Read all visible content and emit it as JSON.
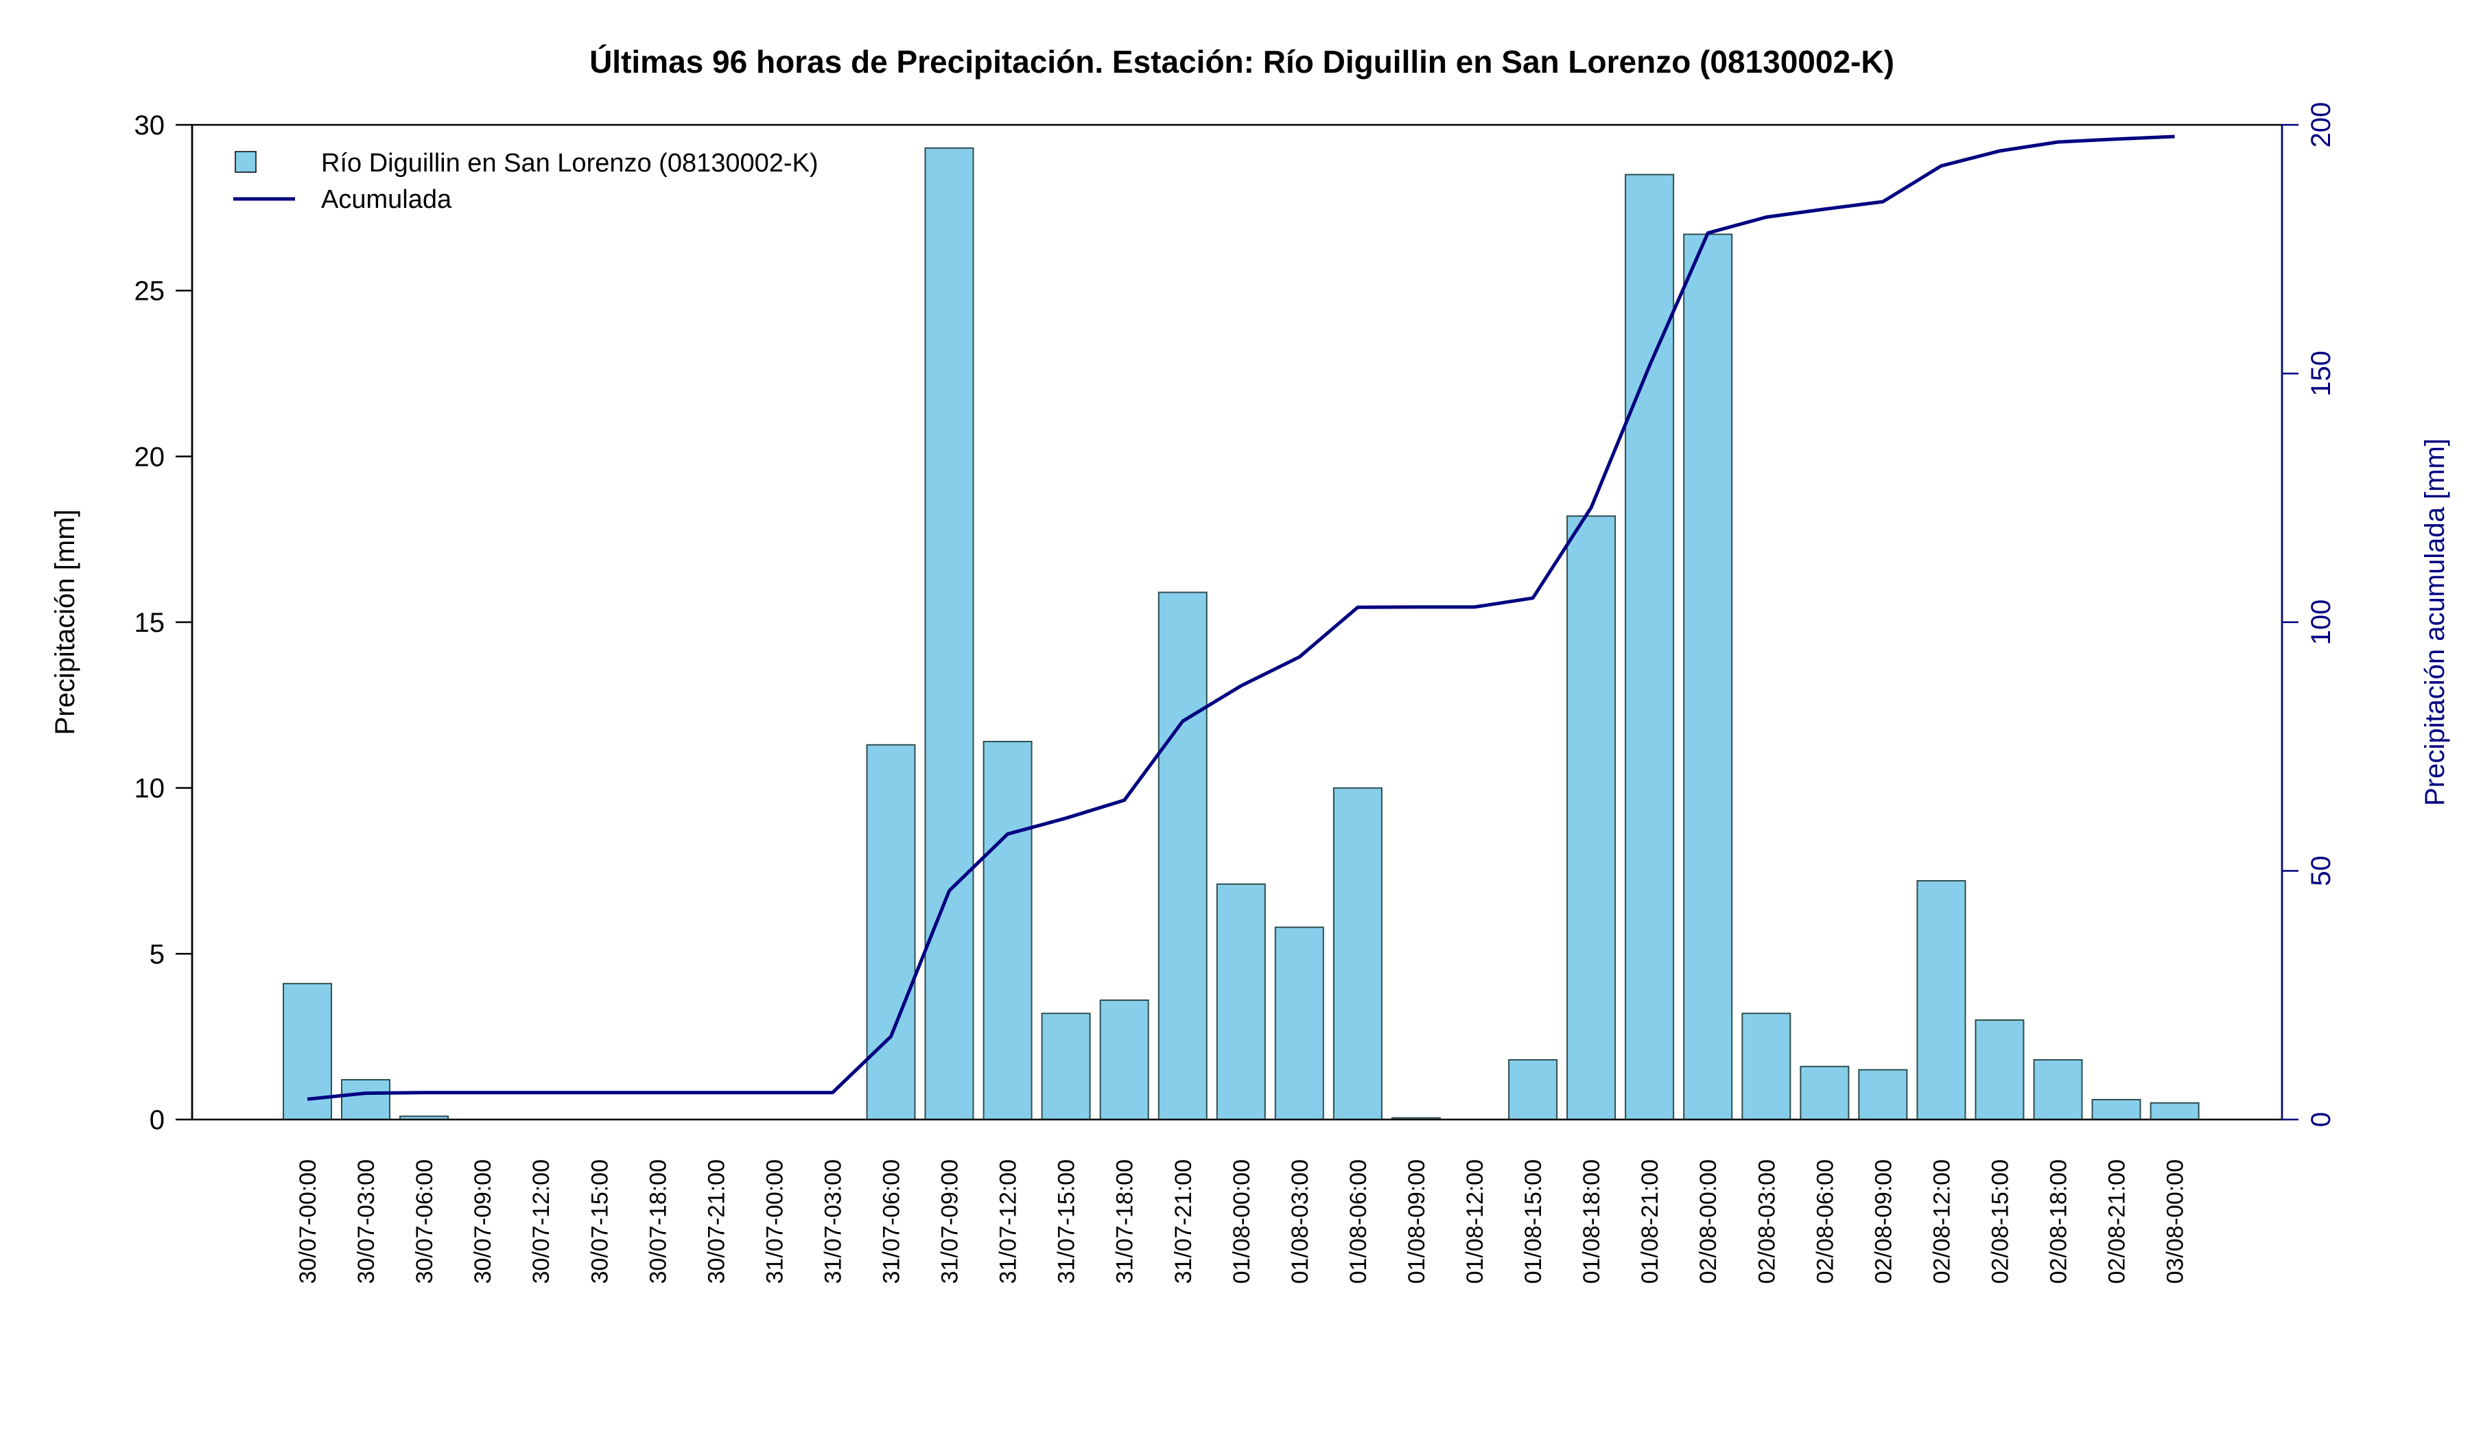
{
  "chart_data": {
    "type": "bar",
    "title": "Últimas 96 horas de Precipitación. Estación: Río Diguillin en San Lorenzo (08130002-K)",
    "ylabel": "Precipitación [mm]",
    "y2label": "Precipitación acumulada [mm]",
    "ylim": [
      0,
      30
    ],
    "y2lim": [
      0,
      200
    ],
    "yticks": [
      "0",
      "5",
      "10",
      "15",
      "20",
      "25",
      "30"
    ],
    "y2ticks": [
      "0",
      "50",
      "100",
      "150",
      "200"
    ],
    "categories": [
      "30/07-00:00",
      "30/07-03:00",
      "30/07-06:00",
      "30/07-09:00",
      "30/07-12:00",
      "30/07-15:00",
      "30/07-18:00",
      "30/07-21:00",
      "31/07-00:00",
      "31/07-03:00",
      "31/07-06:00",
      "31/07-09:00",
      "31/07-12:00",
      "31/07-15:00",
      "31/07-18:00",
      "31/07-21:00",
      "01/08-00:00",
      "01/08-03:00",
      "01/08-06:00",
      "01/08-09:00",
      "01/08-12:00",
      "01/08-15:00",
      "01/08-18:00",
      "01/08-21:00",
      "02/08-00:00",
      "02/08-03:00",
      "02/08-06:00",
      "02/08-09:00",
      "02/08-12:00",
      "02/08-15:00",
      "02/08-18:00",
      "02/08-21:00",
      "03/08-00:00"
    ],
    "series": [
      {
        "name": "Río Diguillin en San Lorenzo (08130002-K)",
        "type": "bar",
        "color": "#87CEEB",
        "values": [
          4.1,
          1.2,
          0.1,
          0,
          0,
          0,
          0,
          0,
          0,
          0,
          11.3,
          29.3,
          11.4,
          3.2,
          3.6,
          15.9,
          7.1,
          5.8,
          10.0,
          0.05,
          0,
          1.8,
          18.2,
          28.5,
          26.7,
          3.2,
          1.6,
          1.5,
          7.2,
          3.0,
          1.8,
          0.6,
          0.5
        ]
      },
      {
        "name": "Acumulada",
        "type": "line",
        "axis": "right",
        "color": "#000080",
        "values": [
          4.1,
          5.3,
          5.4,
          5.4,
          5.4,
          5.4,
          5.4,
          5.4,
          5.4,
          5.4,
          16.7,
          46.0,
          57.4,
          60.6,
          64.2,
          80.1,
          87.2,
          93.0,
          103.0,
          103.05,
          103.05,
          104.85,
          123.05,
          151.55,
          178.25,
          181.45,
          183.05,
          184.55,
          191.75,
          194.75,
          196.55,
          197.15,
          197.65
        ]
      }
    ],
    "legend": "top-left",
    "grid": false
  }
}
